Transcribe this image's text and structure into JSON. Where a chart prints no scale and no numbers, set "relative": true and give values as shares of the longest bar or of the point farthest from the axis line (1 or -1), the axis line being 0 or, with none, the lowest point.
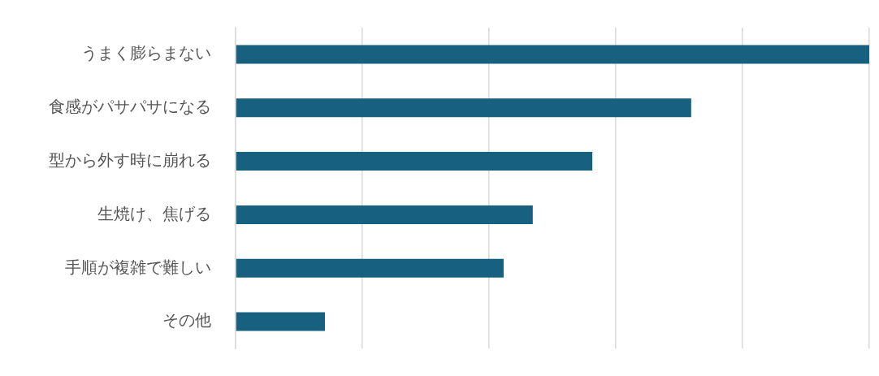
{
  "chart_data": {
    "type": "bar",
    "orientation": "horizontal",
    "relative": true,
    "grid": "x",
    "categories": [
      "うまく膨らまない",
      "食感がパサパサになる",
      "型から外す時に崩れる",
      "生焼け、焦げる",
      "手順が複雑で難しい",
      "その他"
    ],
    "values": [
      1,
      0.719,
      0.563,
      0.469,
      0.423,
      0.141
    ],
    "color": "#17607f"
  }
}
